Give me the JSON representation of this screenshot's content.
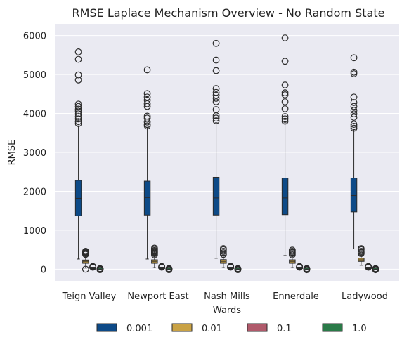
{
  "chart_data": {
    "type": "box",
    "title": "RMSE Laplace Mechanism Overview  - No Random State",
    "xlabel": "Wards",
    "ylabel": "RMSE",
    "ylim": [
      -300,
      6300
    ],
    "yticks": [
      0,
      1000,
      2000,
      3000,
      4000,
      5000,
      6000
    ],
    "grid": true,
    "legend_placement": "bottom-center",
    "colors": {
      "background": "#eaeaf2",
      "grid": "#ffffff",
      "box_edge": "#2b2b2b",
      "outlier_edge": "#2b2b2b"
    },
    "categories": [
      "Teign Valley",
      "Newport East",
      "Nash Mills",
      "Ennerdale",
      "Ladywood"
    ],
    "series": [
      {
        "name": "0.001",
        "color": "#0d4a87",
        "boxes": [
          {
            "whislo": 260,
            "q1": 1370,
            "med": 1820,
            "q3": 2280,
            "whishi": 3680,
            "fliers": [
              3740,
              3790,
              3860,
              3920,
              3990,
              4060,
              4110,
              4180,
              4240,
              4860,
              4990,
              5390,
              5580
            ]
          },
          {
            "whislo": 260,
            "q1": 1390,
            "med": 1840,
            "q3": 2260,
            "whishi": 3640,
            "fliers": [
              3680,
              3720,
              3780,
              3880,
              3930,
              4180,
              4250,
              4340,
              4420,
              4510,
              5120
            ]
          },
          {
            "whislo": 280,
            "q1": 1390,
            "med": 1830,
            "q3": 2360,
            "whishi": 3760,
            "fliers": [
              3810,
              3880,
              3940,
              4100,
              4300,
              4390,
              4470,
              4540,
              4640,
              5100,
              5370,
              5800
            ]
          },
          {
            "whislo": 350,
            "q1": 1400,
            "med": 1830,
            "q3": 2340,
            "whishi": 3760,
            "fliers": [
              3800,
              3860,
              3920,
              4120,
              4300,
              4480,
              4530,
              4730,
              5340,
              5940
            ]
          },
          {
            "whislo": 520,
            "q1": 1470,
            "med": 1890,
            "q3": 2340,
            "whishi": 3580,
            "fliers": [
              3620,
              3670,
              3720,
              3900,
              3990,
              4080,
              4180,
              4280,
              4420,
              5020,
              5060,
              5430
            ]
          }
        ]
      },
      {
        "name": "0.01",
        "color": "#c9a245",
        "boxes": [
          {
            "whislo": 30,
            "q1": 150,
            "med": 190,
            "q3": 235,
            "whishi": 360,
            "fliers": [
              0,
              380,
              400,
              420,
              440,
              460
            ]
          },
          {
            "whislo": 40,
            "q1": 150,
            "med": 190,
            "q3": 240,
            "whishi": 360,
            "fliers": [
              370,
              400,
              420,
              440,
              460,
              480,
              510,
              540
            ]
          },
          {
            "whislo": 40,
            "q1": 150,
            "med": 190,
            "q3": 245,
            "whishi": 360,
            "fliers": [
              380,
              420,
              460,
              500,
              530
            ]
          },
          {
            "whislo": 40,
            "q1": 150,
            "med": 190,
            "q3": 240,
            "whishi": 360,
            "fliers": [
              370,
              400,
              430,
              460,
              490
            ]
          },
          {
            "whislo": 100,
            "q1": 200,
            "med": 240,
            "q3": 280,
            "whishi": 380,
            "fliers": [
              400,
              430,
              460,
              500,
              530
            ]
          }
        ]
      },
      {
        "name": "0.1",
        "color": "#b05a6b",
        "boxes": [
          {
            "whislo": 5,
            "q1": 15,
            "med": 20,
            "q3": 30,
            "whishi": 45,
            "fliers": [
              50,
              55,
              60,
              70
            ]
          },
          {
            "whislo": 5,
            "q1": 15,
            "med": 20,
            "q3": 30,
            "whishi": 45,
            "fliers": [
              50,
              55,
              60,
              70
            ]
          },
          {
            "whislo": 5,
            "q1": 15,
            "med": 20,
            "q3": 30,
            "whishi": 45,
            "fliers": [
              50,
              55,
              60,
              75
            ]
          },
          {
            "whislo": 5,
            "q1": 15,
            "med": 20,
            "q3": 30,
            "whishi": 45,
            "fliers": [
              50,
              55,
              60,
              70
            ]
          },
          {
            "whislo": 5,
            "q1": 15,
            "med": 20,
            "q3": 30,
            "whishi": 45,
            "fliers": [
              50,
              55,
              60,
              70
            ]
          }
        ]
      },
      {
        "name": "1.0",
        "color": "#2a7a48",
        "boxes": [
          {
            "whislo": 0,
            "q1": 1,
            "med": 2,
            "q3": 3,
            "whishi": 5,
            "fliers": [
              -15,
              0,
              8,
              12,
              15
            ]
          },
          {
            "whislo": 0,
            "q1": 1,
            "med": 2,
            "q3": 3,
            "whishi": 5,
            "fliers": [
              -15,
              0,
              8,
              12,
              15
            ]
          },
          {
            "whislo": 0,
            "q1": 1,
            "med": 2,
            "q3": 3,
            "whishi": 5,
            "fliers": [
              -15,
              0,
              8,
              12,
              15
            ]
          },
          {
            "whislo": 0,
            "q1": 1,
            "med": 2,
            "q3": 3,
            "whishi": 5,
            "fliers": [
              -15,
              0,
              8,
              12,
              15
            ]
          },
          {
            "whislo": 0,
            "q1": 1,
            "med": 2,
            "q3": 3,
            "whishi": 5,
            "fliers": [
              -15,
              0,
              8,
              12,
              15
            ]
          }
        ]
      }
    ]
  }
}
